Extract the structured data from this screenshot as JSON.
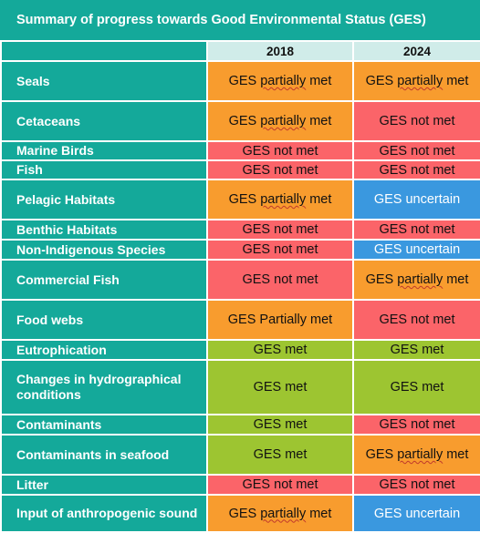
{
  "title": "Summary of progress towards Good Environmental Status (GES)",
  "columns": [
    "2018",
    "2024"
  ],
  "colors": {
    "header_teal": "#14a99a",
    "year_header": "#d0ece9",
    "partially_met": "#f89c2e",
    "not_met": "#fb6469",
    "uncertain": "#3a98df",
    "met": "#9dc531"
  },
  "rows": [
    {
      "label": "Seals",
      "y2018": "GES partially met",
      "y2024": "GES partially met"
    },
    {
      "label": "Cetaceans",
      "y2018": "GES partially met",
      "y2024": "GES not met"
    },
    {
      "label": "Marine Birds",
      "y2018": "GES not met",
      "y2024": "GES not met"
    },
    {
      "label": "Fish",
      "y2018": "GES not met",
      "y2024": "GES not met"
    },
    {
      "label": "Pelagic Habitats",
      "y2018": "GES partially met",
      "y2024": "GES uncertain"
    },
    {
      "label": "Benthic Habitats",
      "y2018": "GES not met",
      "y2024": "GES not met"
    },
    {
      "label": "Non-Indigenous Species",
      "y2018": "GES not met",
      "y2024": "GES uncertain"
    },
    {
      "label": "Commercial Fish",
      "y2018": "GES not met",
      "y2024": "GES partially met"
    },
    {
      "label": "Food webs",
      "y2018": "GES Partially met",
      "y2024": "GES not met"
    },
    {
      "label": "Eutrophication",
      "y2018": "GES met",
      "y2024": "GES met"
    },
    {
      "label": "Changes in hydrographical conditions",
      "y2018": "GES met",
      "y2024": "GES met"
    },
    {
      "label": "Contaminants",
      "y2018": "GES met",
      "y2024": "GES not met"
    },
    {
      "label": "Contaminants in seafood",
      "y2018": "GES met",
      "y2024": "GES partially met"
    },
    {
      "label": "Litter",
      "y2018": "GES not met",
      "y2024": "GES not met"
    },
    {
      "label": "Input of anthropogenic sound",
      "y2018": "GES partially met",
      "y2024": "GES uncertain"
    }
  ]
}
